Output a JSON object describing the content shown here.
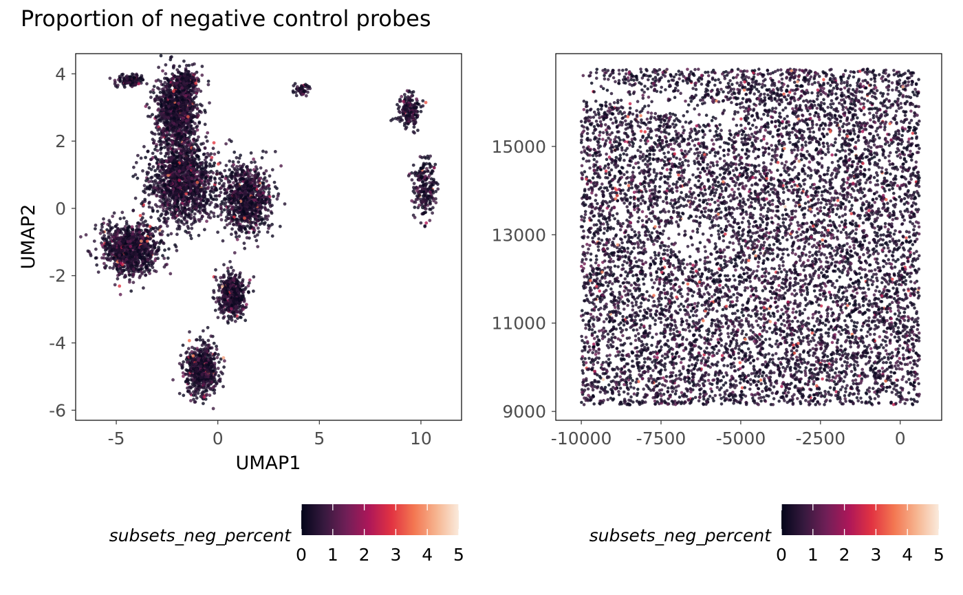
{
  "title": "Proportion of negative control probes",
  "chart_data": [
    {
      "type": "scatter",
      "title": "",
      "xlabel": "UMAP1",
      "ylabel": "UMAP2",
      "xlim": [
        -7,
        12
      ],
      "ylim": [
        -6.3,
        4.6
      ],
      "xticks": [
        -5,
        0,
        5,
        10
      ],
      "yticks": [
        -6,
        -4,
        -2,
        0,
        2,
        4
      ],
      "grid": false,
      "color_variable": "subsets_neg_percent",
      "color_range": [
        0,
        5
      ],
      "color_scale": [
        "#03051a",
        "#36193e",
        "#701f57",
        "#ad1759",
        "#e13342",
        "#f37651",
        "#f6b48f",
        "#faebdd"
      ],
      "legend_position": "bottom",
      "legend_ticks": [
        0,
        1,
        2,
        3,
        4,
        5
      ],
      "clusters": [
        {
          "x": -2.0,
          "y": 2.9,
          "sx": 0.9,
          "sy": 1.0,
          "n": 1200
        },
        {
          "x": -1.8,
          "y": 0.8,
          "sx": 1.4,
          "sy": 1.1,
          "n": 1400
        },
        {
          "x": -4.3,
          "y": -1.2,
          "sx": 1.3,
          "sy": 0.7,
          "n": 1000
        },
        {
          "x": 1.4,
          "y": 0.3,
          "sx": 1.1,
          "sy": 0.9,
          "n": 900
        },
        {
          "x": 0.7,
          "y": -2.6,
          "sx": 0.6,
          "sy": 0.6,
          "n": 500
        },
        {
          "x": -0.8,
          "y": -4.8,
          "sx": 0.7,
          "sy": 0.7,
          "n": 650
        },
        {
          "x": -4.3,
          "y": 3.8,
          "sx": 0.5,
          "sy": 0.15,
          "n": 150
        },
        {
          "x": -1.6,
          "y": 3.8,
          "sx": 0.5,
          "sy": 0.2,
          "n": 200
        },
        {
          "x": 4.1,
          "y": 3.5,
          "sx": 0.3,
          "sy": 0.15,
          "n": 70
        },
        {
          "x": 9.4,
          "y": 2.9,
          "sx": 0.5,
          "sy": 0.5,
          "n": 200
        },
        {
          "x": 10.2,
          "y": 0.6,
          "sx": 0.5,
          "sy": 0.8,
          "n": 220
        }
      ]
    },
    {
      "type": "scatter",
      "title": "",
      "xlabel": "",
      "ylabel": "",
      "xlim": [
        -10800,
        1300
      ],
      "ylim": [
        8800,
        17100
      ],
      "xticks": [
        -10000,
        -7500,
        -5000,
        -2500,
        0
      ],
      "yticks": [
        9000,
        11000,
        13000,
        15000
      ],
      "grid": false,
      "x_extent": [
        -10000,
        600
      ],
      "y_extent": [
        9150,
        16750
      ],
      "color_variable": "subsets_neg_percent",
      "color_range": [
        0,
        5
      ],
      "color_scale": [
        "#03051a",
        "#36193e",
        "#701f57",
        "#ad1759",
        "#e13342",
        "#f37651",
        "#f6b48f",
        "#faebdd"
      ],
      "legend_position": "bottom",
      "legend_ticks": [
        0,
        1,
        2,
        3,
        4,
        5
      ]
    }
  ]
}
